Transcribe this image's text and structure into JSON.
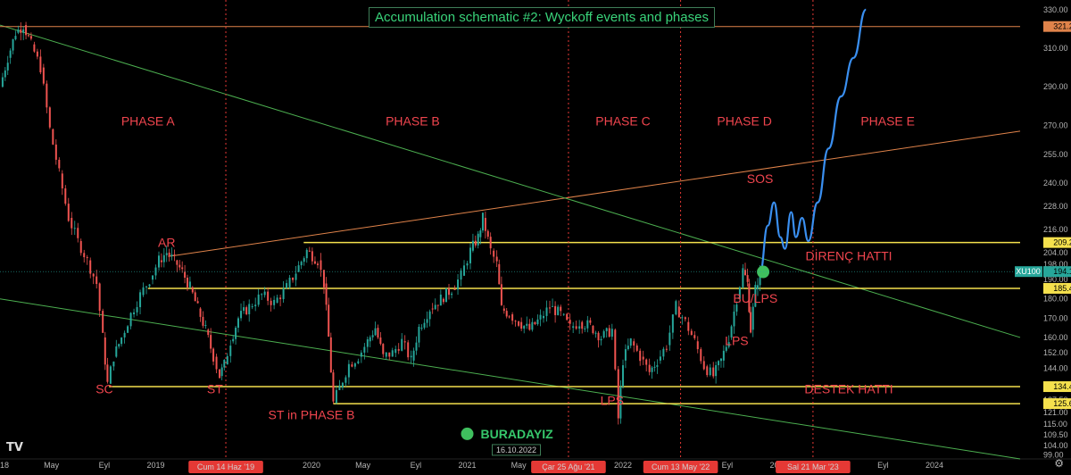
{
  "title": "Accumulation schematic #2: Wyckoff events and phases",
  "chart_data": {
    "type": "line",
    "title": "Accumulation schematic #2: Wyckoff events and phases",
    "xlabel": "",
    "ylabel": "",
    "ylim": [
      97,
      335
    ],
    "x_range": [
      2018.0,
      2024.55
    ],
    "x_ticks": [
      {
        "label": "2018",
        "x": 2018.0
      },
      {
        "label": "May",
        "x": 2018.33
      },
      {
        "label": "Eyl",
        "x": 2018.67
      },
      {
        "label": "2019",
        "x": 2019.0
      },
      {
        "label": "Tem",
        "x": 2019.5
      },
      {
        "label": "2020",
        "x": 2020.0
      },
      {
        "label": "May",
        "x": 2020.33
      },
      {
        "label": "Eyl",
        "x": 2020.67
      },
      {
        "label": "2021",
        "x": 2021.0
      },
      {
        "label": "May",
        "x": 2021.33
      },
      {
        "label": "2022",
        "x": 2022.0
      },
      {
        "label": "Eyl",
        "x": 2022.67
      },
      {
        "label": "2023",
        "x": 2023.0
      },
      {
        "label": "Eyl",
        "x": 2023.67
      },
      {
        "label": "2024",
        "x": 2024.0
      }
    ],
    "y_ticks": [
      99.0,
      104.0,
      109.5,
      115.0,
      121.0,
      127.5,
      134.0,
      144.0,
      152.0,
      160.0,
      170.0,
      180.0,
      190.0,
      198.0,
      204.0,
      216.0,
      228.0,
      240.0,
      255.0,
      270.0,
      290.0,
      310.0,
      330.0
    ],
    "price_labels": [
      {
        "value": 321.25,
        "text": "321.25",
        "color": "#e0834a"
      },
      {
        "value": 209.22,
        "text": "209.22",
        "color": "#f4e04d"
      },
      {
        "value": 194.15,
        "text": "194.15",
        "color": "#26a69a",
        "prefix": "XU100"
      },
      {
        "value": 185.46,
        "text": "185.46",
        "color": "#f4e04d"
      },
      {
        "value": 134.49,
        "text": "134.49",
        "color": "#f4e04d"
      },
      {
        "value": 125.67,
        "text": "125.67",
        "color": "#f4e04d"
      }
    ],
    "series": [
      {
        "type": "price",
        "color_up": "#26a69a",
        "color_down": "#ef5350",
        "points": [
          [
            2018.0,
            290
          ],
          [
            2018.05,
            305
          ],
          [
            2018.1,
            318
          ],
          [
            2018.15,
            322
          ],
          [
            2018.2,
            312
          ],
          [
            2018.26,
            300
          ],
          [
            2018.32,
            268
          ],
          [
            2018.38,
            245
          ],
          [
            2018.44,
            222
          ],
          [
            2018.5,
            210
          ],
          [
            2018.56,
            200
          ],
          [
            2018.62,
            188
          ],
          [
            2018.66,
            160
          ],
          [
            2018.69,
            136
          ],
          [
            2018.73,
            150
          ],
          [
            2018.78,
            160
          ],
          [
            2018.84,
            172
          ],
          [
            2018.9,
            182
          ],
          [
            2018.96,
            190
          ],
          [
            2019.02,
            200
          ],
          [
            2019.07,
            204
          ],
          [
            2019.12,
            200
          ],
          [
            2019.17,
            194
          ],
          [
            2019.22,
            186
          ],
          [
            2019.27,
            175
          ],
          [
            2019.32,
            164
          ],
          [
            2019.37,
            150
          ],
          [
            2019.41,
            140
          ],
          [
            2019.44,
            146
          ],
          [
            2019.48,
            158
          ],
          [
            2019.53,
            170
          ],
          [
            2019.6,
            176
          ],
          [
            2019.68,
            182
          ],
          [
            2019.76,
            178
          ],
          [
            2019.84,
            186
          ],
          [
            2019.9,
            194
          ],
          [
            2019.97,
            205
          ],
          [
            2020.04,
            200
          ],
          [
            2020.08,
            188
          ],
          [
            2020.11,
            160
          ],
          [
            2020.14,
            126
          ],
          [
            2020.18,
            134
          ],
          [
            2020.24,
            146
          ],
          [
            2020.3,
            150
          ],
          [
            2020.36,
            158
          ],
          [
            2020.41,
            165
          ],
          [
            2020.46,
            150
          ],
          [
            2020.52,
            152
          ],
          [
            2020.58,
            158
          ],
          [
            2020.64,
            148
          ],
          [
            2020.69,
            165
          ],
          [
            2020.76,
            175
          ],
          [
            2020.83,
            180
          ],
          [
            2020.9,
            185
          ],
          [
            2020.96,
            192
          ],
          [
            2021.02,
            205
          ],
          [
            2021.07,
            212
          ],
          [
            2021.1,
            222
          ],
          [
            2021.15,
            205
          ],
          [
            2021.19,
            198
          ],
          [
            2021.22,
            175
          ],
          [
            2021.27,
            172
          ],
          [
            2021.33,
            168
          ],
          [
            2021.4,
            164
          ],
          [
            2021.47,
            170
          ],
          [
            2021.53,
            176
          ],
          [
            2021.6,
            172
          ],
          [
            2021.66,
            165
          ],
          [
            2021.72,
            168
          ],
          [
            2021.79,
            166
          ],
          [
            2021.86,
            160
          ],
          [
            2021.93,
            164
          ],
          [
            2021.97,
            118
          ],
          [
            2022.0,
            148
          ],
          [
            2022.05,
            158
          ],
          [
            2022.11,
            150
          ],
          [
            2022.17,
            142
          ],
          [
            2022.22,
            148
          ],
          [
            2022.28,
            156
          ],
          [
            2022.34,
            176
          ],
          [
            2022.4,
            168
          ],
          [
            2022.46,
            158
          ],
          [
            2022.52,
            145
          ],
          [
            2022.58,
            140
          ],
          [
            2022.63,
            148
          ],
          [
            2022.68,
            160
          ],
          [
            2022.73,
            180
          ],
          [
            2022.77,
            195
          ],
          [
            2022.8,
            188
          ],
          [
            2022.82,
            164
          ],
          [
            2022.85,
            185
          ],
          [
            2022.88,
            194
          ]
        ]
      },
      {
        "type": "projection",
        "color": "#3a8ff0",
        "points": [
          [
            2022.88,
            194
          ],
          [
            2022.93,
            218
          ],
          [
            2022.97,
            230
          ],
          [
            2023.01,
            212
          ],
          [
            2023.04,
            206
          ],
          [
            2023.08,
            225
          ],
          [
            2023.11,
            212
          ],
          [
            2023.15,
            222
          ],
          [
            2023.19,
            210
          ],
          [
            2023.25,
            230
          ],
          [
            2023.32,
            258
          ],
          [
            2023.4,
            285
          ],
          [
            2023.48,
            305
          ],
          [
            2023.56,
            330
          ]
        ]
      }
    ],
    "horizontal_levels": [
      {
        "value": 321.25,
        "x_from": 2018.0,
        "color": "#e0834a"
      },
      {
        "value": 209.22,
        "x_from": 2019.95,
        "color": "#f4e04d"
      },
      {
        "value": 185.46,
        "x_from": 2018.95,
        "color": "#f4e04d"
      },
      {
        "value": 134.49,
        "x_from": 2018.7,
        "color": "#f4e04d"
      },
      {
        "value": 125.67,
        "x_from": 2020.14,
        "color": "#f4e04d"
      }
    ],
    "trend_lines": [
      {
        "from": [
          2019.08,
          202
        ],
        "to": [
          2024.55,
          267
        ],
        "color": "#e0834a"
      },
      {
        "from": [
          2018.0,
          322
        ],
        "to": [
          2024.55,
          160
        ],
        "color": "#4caf50"
      },
      {
        "from": [
          2018.0,
          180
        ],
        "to": [
          2024.55,
          97
        ],
        "color": "#4caf50"
      }
    ],
    "vertical_markers": [
      {
        "x": 2019.45,
        "label": "Cum 14 Haz '19"
      },
      {
        "x": 2021.65,
        "label": "Çar 25 Ağu '21"
      },
      {
        "x": 2022.37,
        "label": "Cum 13 May '22"
      },
      {
        "x": 2023.22,
        "label": "Sal 21 Mar '23"
      }
    ],
    "annotations": [
      {
        "text": "PHASE A",
        "x": 2018.95,
        "y": 270
      },
      {
        "text": "PHASE B",
        "x": 2020.65,
        "y": 270
      },
      {
        "text": "PHASE C",
        "x": 2022.0,
        "y": 270
      },
      {
        "text": "PHASE D",
        "x": 2022.78,
        "y": 270
      },
      {
        "text": "PHASE E",
        "x": 2023.7,
        "y": 270
      },
      {
        "text": "SOS",
        "x": 2022.88,
        "y": 240
      },
      {
        "text": "AR",
        "x": 2019.07,
        "y": 207
      },
      {
        "text": "DİRENÇ HATTI",
        "x": 2023.45,
        "y": 200
      },
      {
        "text": "BU/LPS",
        "x": 2022.85,
        "y": 178
      },
      {
        "text": "LPS",
        "x": 2022.73,
        "y": 156
      },
      {
        "text": "SC",
        "x": 2018.67,
        "y": 131
      },
      {
        "text": "ST",
        "x": 2019.38,
        "y": 131
      },
      {
        "text": "LPS",
        "x": 2021.93,
        "y": 125
      },
      {
        "text": "DESTEK HATTI",
        "x": 2023.45,
        "y": 131
      },
      {
        "text": "ST in PHASE B",
        "x": 2020.0,
        "y": 117.5
      }
    ],
    "markers": [
      {
        "x": 2022.9,
        "y": 194,
        "color": "#3fbf5e",
        "kind": "current"
      },
      {
        "x": 2021.0,
        "y": 110,
        "color": "#3fbf5e",
        "kind": "legend"
      }
    ],
    "here_label": "BURADAYIZ",
    "here_date": "16.10.2022",
    "grid": false
  },
  "toolbar": {
    "settings_icon": "gear-icon",
    "logo": "TV"
  }
}
